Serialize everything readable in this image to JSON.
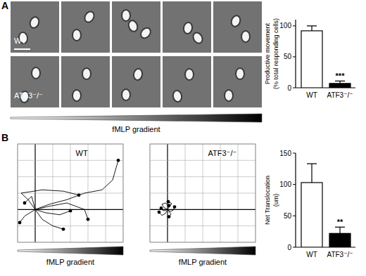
{
  "panels": [
    "A",
    "B"
  ],
  "micrographs": {
    "rows": [
      "WT",
      "ATF3⁻/⁻"
    ],
    "xlabel": "fMLP gradient"
  },
  "chart_data": [
    {
      "type": "bar",
      "categories": [
        "WT",
        "ATF3⁻/⁻"
      ],
      "values": [
        92,
        7
      ],
      "errors": [
        8,
        4
      ],
      "colors": [
        "#ffffff",
        "#000000"
      ],
      "significance": [
        null,
        "***"
      ],
      "ylabel": [
        "Productive movement",
        "(% total responding cells)"
      ],
      "ylim": [
        0,
        110
      ],
      "yticks": [
        0,
        50,
        100
      ]
    },
    {
      "type": "line",
      "title": "WT",
      "xlabel": "fMLP gradient",
      "color": "#000000",
      "marker": "dot",
      "grid": true,
      "tick_labels": false,
      "xlim": [
        -25,
        125
      ],
      "xticks": [
        -25,
        0,
        25,
        50,
        75,
        100,
        125
      ],
      "ylim": [
        -50,
        100
      ],
      "yticks": [
        -50,
        -25,
        0,
        25,
        50,
        75,
        100
      ],
      "series": [
        {
          "x": [
            0,
            20,
            45,
            70,
            95,
            110,
            118
          ],
          "values": [
            0,
            8,
            15,
            25,
            30,
            45,
            75
          ]
        },
        {
          "x": [
            0,
            -10,
            -20,
            10,
            40,
            62
          ],
          "values": [
            0,
            15,
            25,
            30,
            28,
            22
          ]
        },
        {
          "x": [
            0,
            15,
            35,
            50
          ],
          "values": [
            0,
            -5,
            -8,
            -2
          ]
        },
        {
          "x": [
            0,
            10,
            25,
            40
          ],
          "values": [
            0,
            -15,
            -25,
            -30
          ]
        },
        {
          "x": [
            0,
            -15,
            -22
          ],
          "values": [
            0,
            -10,
            -20
          ]
        },
        {
          "x": [
            0,
            20,
            45,
            70,
            75
          ],
          "values": [
            0,
            5,
            10,
            0,
            -15
          ]
        },
        {
          "x": [
            0,
            -5,
            -15
          ],
          "values": [
            0,
            20,
            10
          ]
        }
      ]
    },
    {
      "type": "line",
      "title": "ATF3⁻/⁻",
      "xlabel": "fMLP gradient",
      "color": "#000000",
      "marker": "dot",
      "grid": true,
      "tick_labels": false,
      "xlim": [
        -25,
        125
      ],
      "xticks": [
        -25,
        0,
        25,
        50,
        75,
        100,
        125
      ],
      "ylim": [
        -50,
        100
      ],
      "yticks": [
        -50,
        -25,
        0,
        25,
        50,
        75,
        100
      ],
      "series": [
        {
          "x": [
            0,
            -5,
            -8,
            -3,
            2
          ],
          "values": [
            0,
            3,
            8,
            10,
            6
          ]
        },
        {
          "x": [
            0,
            4,
            8,
            10
          ],
          "values": [
            0,
            -3,
            -1,
            4
          ]
        },
        {
          "x": [
            0,
            -3,
            -8,
            -12
          ],
          "values": [
            0,
            -6,
            -9,
            -4
          ]
        },
        {
          "x": [
            0,
            3,
            6,
            1
          ],
          "values": [
            0,
            5,
            9,
            12
          ]
        },
        {
          "x": [
            0,
            -6,
            -9
          ],
          "values": [
            0,
            -2,
            2
          ]
        },
        {
          "x": [
            0,
            5,
            2
          ],
          "values": [
            0,
            -7,
            -11
          ]
        }
      ]
    },
    {
      "type": "bar",
      "categories": [
        "WT",
        "ATF3⁻/⁻"
      ],
      "values": [
        103,
        22
      ],
      "errors": [
        30,
        10
      ],
      "colors": [
        "#ffffff",
        "#000000"
      ],
      "significance": [
        null,
        "**"
      ],
      "ylabel": [
        "Net Translocation",
        "(um)"
      ],
      "ylim": [
        0,
        150
      ],
      "yticks": [
        0,
        50,
        100,
        150
      ]
    }
  ]
}
